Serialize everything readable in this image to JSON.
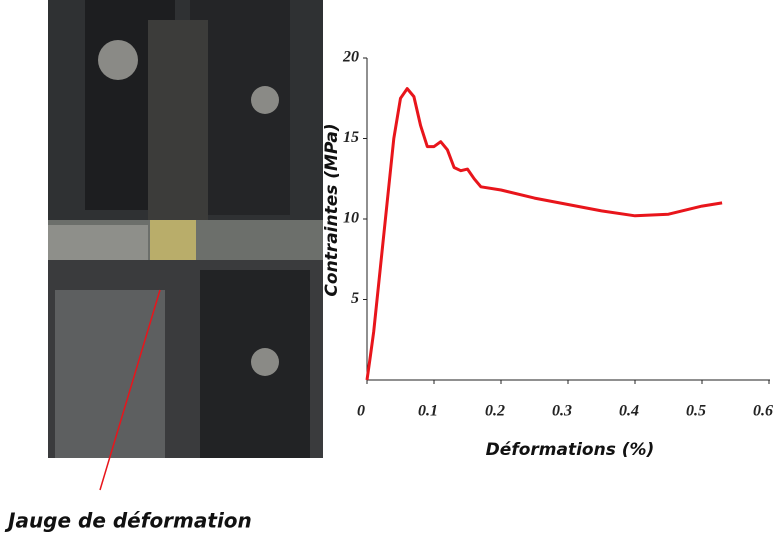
{
  "chart_data": {
    "type": "line",
    "x_label": "Déformations (%)",
    "y_label": "Contraintes (MPa)",
    "annotation": "Jauge de déformation",
    "x": [
      0,
      0.005,
      0.01,
      0.02,
      0.03,
      0.04,
      0.05,
      0.06,
      0.07,
      0.08,
      0.09,
      0.1,
      0.11,
      0.12,
      0.13,
      0.14,
      0.15,
      0.16,
      0.17,
      0.2,
      0.25,
      0.3,
      0.35,
      0.4,
      0.45,
      0.5,
      0.53
    ],
    "values": [
      0,
      1.5,
      3,
      7,
      11,
      15,
      17.5,
      18.1,
      17.6,
      15.8,
      14.5,
      14.5,
      14.8,
      14.3,
      13.2,
      13.0,
      13.1,
      12.5,
      12.0,
      11.8,
      11.3,
      10.9,
      10.5,
      10.2,
      10.3,
      10.8,
      11.0
    ],
    "color": "#e8151b",
    "xlim": [
      0,
      0.6
    ],
    "xticks": [
      0,
      0.1,
      0.2,
      0.3,
      0.4,
      0.5,
      0.6
    ],
    "ylim": [
      0,
      20
    ],
    "yticks": [
      5,
      10,
      15,
      20
    ]
  }
}
